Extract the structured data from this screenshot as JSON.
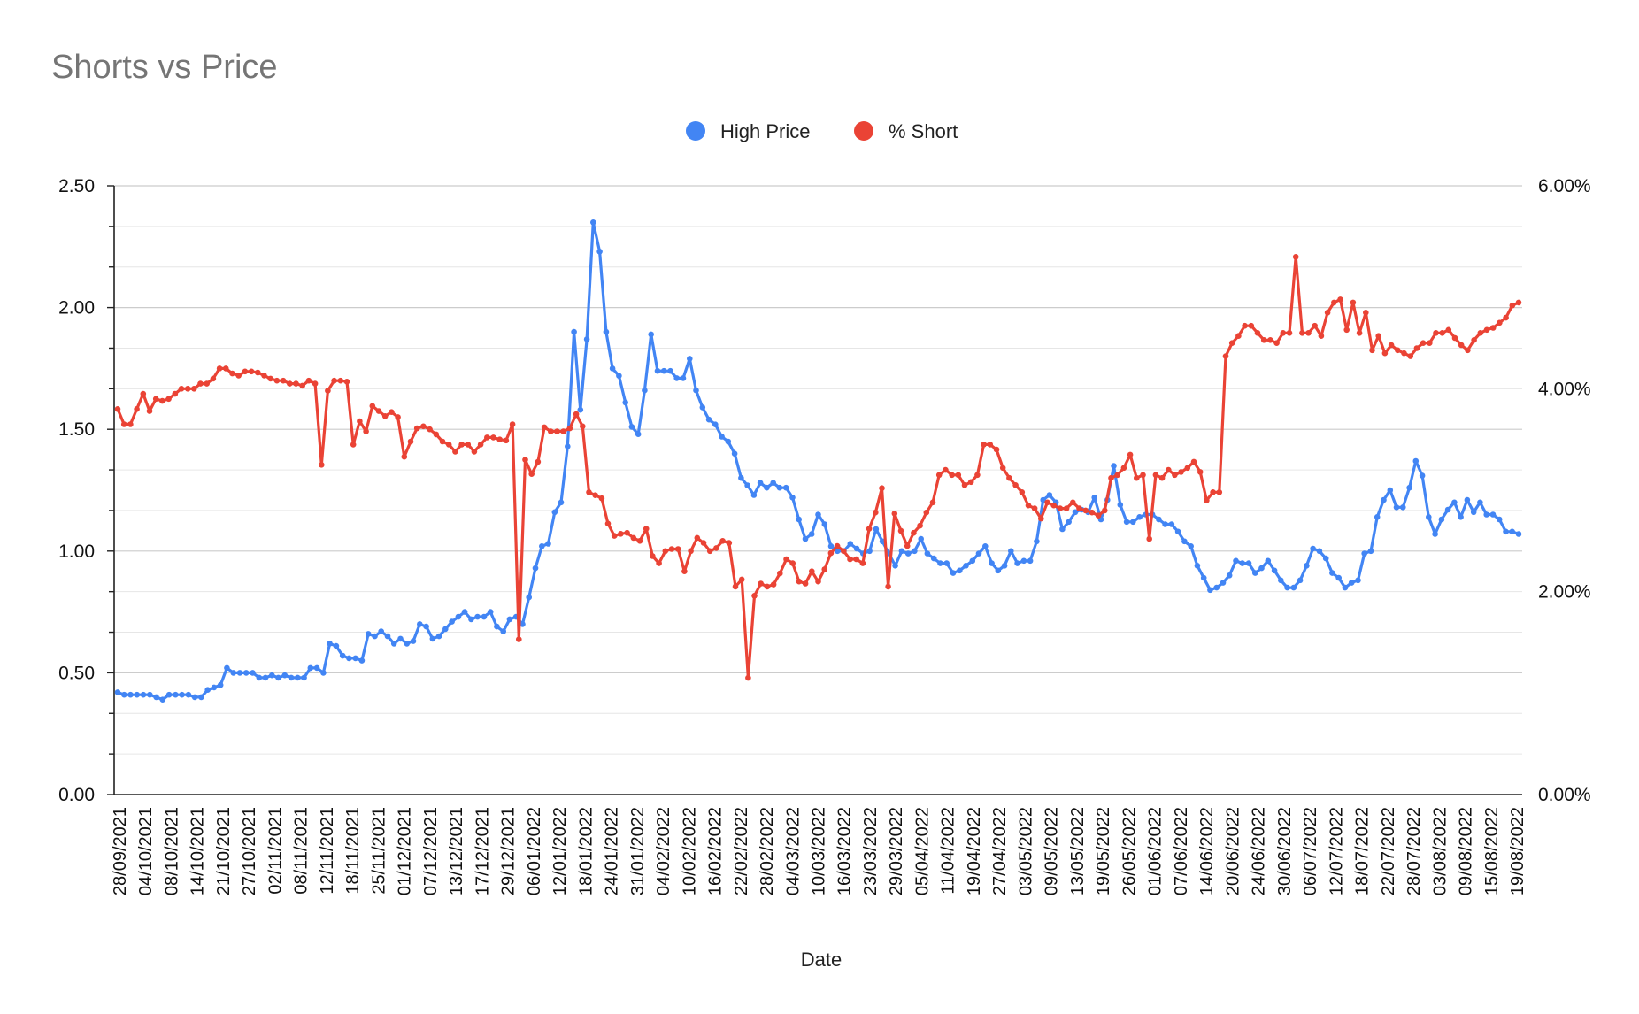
{
  "chart_data": {
    "type": "line",
    "title": "Shorts vs Price",
    "xlabel": "Date",
    "ylabel": "",
    "y2label": "",
    "ylim": [
      0,
      2.5
    ],
    "y2lim": [
      0,
      0.06
    ],
    "y_ticks": [
      "0.00",
      "0.50",
      "1.00",
      "1.50",
      "2.00",
      "2.50"
    ],
    "y2_ticks": [
      "0.00%",
      "2.00%",
      "4.00%",
      "6.00%"
    ],
    "x_tick_labels": [
      "28/09/2021",
      "04/10/2021",
      "08/10/2021",
      "14/10/2021",
      "21/10/2021",
      "27/10/2021",
      "02/11/2021",
      "08/11/2021",
      "12/11/2021",
      "18/11/2021",
      "25/11/2021",
      "01/12/2021",
      "07/12/2021",
      "13/12/2021",
      "17/12/2021",
      "29/12/2021",
      "06/01/2022",
      "12/01/2022",
      "18/01/2022",
      "24/01/2022",
      "31/01/2022",
      "04/02/2022",
      "10/02/2022",
      "16/02/2022",
      "22/02/2022",
      "28/02/2022",
      "04/03/2022",
      "10/03/2022",
      "16/03/2022",
      "23/03/2022",
      "29/03/2022",
      "05/04/2022",
      "11/04/2022",
      "19/04/2022",
      "27/04/2022",
      "03/05/2022",
      "09/05/2022",
      "13/05/2022",
      "19/05/2022",
      "26/05/2022",
      "01/06/2022",
      "07/06/2022",
      "14/06/2022",
      "20/06/2022",
      "24/06/2022",
      "30/06/2022",
      "06/07/2022",
      "12/07/2022",
      "18/07/2022",
      "22/07/2022",
      "28/07/2022",
      "03/08/2022",
      "09/08/2022",
      "15/08/2022",
      "19/08/2022"
    ],
    "grid": true,
    "legend_position": "top-center",
    "series": [
      {
        "name": "High Price",
        "axis": "left",
        "color": "#4285f4",
        "values": [
          0.42,
          0.41,
          0.41,
          0.41,
          0.41,
          0.41,
          0.4,
          0.39,
          0.41,
          0.41,
          0.41,
          0.41,
          0.4,
          0.4,
          0.43,
          0.44,
          0.45,
          0.52,
          0.5,
          0.5,
          0.5,
          0.5,
          0.48,
          0.48,
          0.49,
          0.48,
          0.49,
          0.48,
          0.48,
          0.48,
          0.52,
          0.52,
          0.5,
          0.62,
          0.61,
          0.57,
          0.56,
          0.56,
          0.55,
          0.66,
          0.65,
          0.67,
          0.65,
          0.62,
          0.64,
          0.62,
          0.63,
          0.7,
          0.69,
          0.64,
          0.65,
          0.68,
          0.71,
          0.73,
          0.75,
          0.72,
          0.73,
          0.73,
          0.75,
          0.69,
          0.67,
          0.72,
          0.73,
          0.7,
          0.81,
          0.93,
          1.02,
          1.03,
          1.16,
          1.2,
          1.43,
          1.9,
          1.58,
          1.87,
          2.35,
          2.23,
          1.9,
          1.75,
          1.72,
          1.61,
          1.51,
          1.48,
          1.66,
          1.89,
          1.74,
          1.74,
          1.74,
          1.71,
          1.71,
          1.79,
          1.66,
          1.59,
          1.54,
          1.52,
          1.47,
          1.45,
          1.4,
          1.3,
          1.27,
          1.23,
          1.28,
          1.26,
          1.28,
          1.26,
          1.26,
          1.22,
          1.13,
          1.05,
          1.07,
          1.15,
          1.11,
          1.02,
          1.0,
          1.0,
          1.03,
          1.01,
          0.99,
          1.0,
          1.09,
          1.04,
          0.99,
          0.94,
          1.0,
          0.99,
          1.0,
          1.05,
          0.99,
          0.97,
          0.95,
          0.95,
          0.91,
          0.92,
          0.94,
          0.96,
          0.99,
          1.02,
          0.95,
          0.92,
          0.94,
          1.0,
          0.95,
          0.96,
          0.96,
          1.04,
          1.21,
          1.23,
          1.2,
          1.09,
          1.12,
          1.16,
          1.17,
          1.16,
          1.22,
          1.13,
          1.21,
          1.35,
          1.19,
          1.12,
          1.12,
          1.14,
          1.15,
          1.15,
          1.13,
          1.11,
          1.11,
          1.08,
          1.04,
          1.02,
          0.94,
          0.89,
          0.84,
          0.85,
          0.87,
          0.9,
          0.96,
          0.95,
          0.95,
          0.91,
          0.93,
          0.96,
          0.92,
          0.88,
          0.85,
          0.85,
          0.88,
          0.94,
          1.01,
          1.0,
          0.97,
          0.91,
          0.89,
          0.85,
          0.87,
          0.88,
          0.99,
          1.0,
          1.14,
          1.21,
          1.25,
          1.18,
          1.18,
          1.26,
          1.37,
          1.31,
          1.14,
          1.07,
          1.13,
          1.17,
          1.2,
          1.14,
          1.21,
          1.16,
          1.2,
          1.15,
          1.15,
          1.13,
          1.08,
          1.08,
          1.07
        ]
      },
      {
        "name": "% Short",
        "axis": "right",
        "color": "#ea4335",
        "values": [
          0.038,
          0.0365,
          0.0365,
          0.038,
          0.0395,
          0.0378,
          0.039,
          0.0388,
          0.039,
          0.0395,
          0.04,
          0.04,
          0.04,
          0.0405,
          0.0405,
          0.041,
          0.042,
          0.042,
          0.0415,
          0.0413,
          0.0417,
          0.0417,
          0.0416,
          0.0413,
          0.041,
          0.0408,
          0.0408,
          0.0405,
          0.0405,
          0.0403,
          0.0408,
          0.0405,
          0.0325,
          0.0398,
          0.0408,
          0.0408,
          0.0407,
          0.0345,
          0.0368,
          0.0358,
          0.0383,
          0.0378,
          0.0373,
          0.0377,
          0.0372,
          0.0333,
          0.0348,
          0.0361,
          0.0363,
          0.036,
          0.0355,
          0.0348,
          0.0345,
          0.0338,
          0.0345,
          0.0345,
          0.0338,
          0.0345,
          0.0352,
          0.0352,
          0.035,
          0.0349,
          0.0365,
          0.0153,
          0.033,
          0.0316,
          0.0328,
          0.0362,
          0.0358,
          0.0358,
          0.0358,
          0.0361,
          0.0375,
          0.0363,
          0.0298,
          0.0295,
          0.0292,
          0.0267,
          0.0255,
          0.0257,
          0.0258,
          0.0253,
          0.025,
          0.0262,
          0.0235,
          0.0228,
          0.024,
          0.0242,
          0.0242,
          0.022,
          0.024,
          0.0253,
          0.0248,
          0.024,
          0.0243,
          0.025,
          0.0248,
          0.0205,
          0.0212,
          0.0115,
          0.0196,
          0.0208,
          0.0205,
          0.0207,
          0.0218,
          0.0232,
          0.0228,
          0.021,
          0.0208,
          0.022,
          0.021,
          0.0222,
          0.0238,
          0.0245,
          0.024,
          0.0232,
          0.0232,
          0.0228,
          0.0262,
          0.0278,
          0.0302,
          0.0205,
          0.0277,
          0.026,
          0.0245,
          0.0258,
          0.0265,
          0.0278,
          0.0288,
          0.0315,
          0.032,
          0.0315,
          0.0315,
          0.0305,
          0.0308,
          0.0315,
          0.0345,
          0.0345,
          0.034,
          0.0322,
          0.0312,
          0.0305,
          0.0298,
          0.0285,
          0.0282,
          0.0272,
          0.0288,
          0.0285,
          0.0282,
          0.0282,
          0.0288,
          0.0282,
          0.028,
          0.0278,
          0.0275,
          0.028,
          0.0312,
          0.0315,
          0.0322,
          0.0335,
          0.0312,
          0.0315,
          0.0252,
          0.0315,
          0.0312,
          0.032,
          0.0315,
          0.0318,
          0.0322,
          0.0328,
          0.0318,
          0.029,
          0.0298,
          0.0298,
          0.0432,
          0.0445,
          0.0452,
          0.0462,
          0.0462,
          0.0455,
          0.0448,
          0.0448,
          0.0445,
          0.0455,
          0.0455,
          0.053,
          0.0455,
          0.0455,
          0.0462,
          0.0452,
          0.0475,
          0.0485,
          0.0488,
          0.0458,
          0.0485,
          0.0455,
          0.0475,
          0.0438,
          0.0452,
          0.0435,
          0.0443,
          0.0438,
          0.0435,
          0.0432,
          0.044,
          0.0445,
          0.0445,
          0.0455,
          0.0455,
          0.0458,
          0.045,
          0.0443,
          0.0438,
          0.0448,
          0.0455,
          0.0458,
          0.046,
          0.0465,
          0.047,
          0.0482,
          0.0485
        ]
      }
    ]
  }
}
